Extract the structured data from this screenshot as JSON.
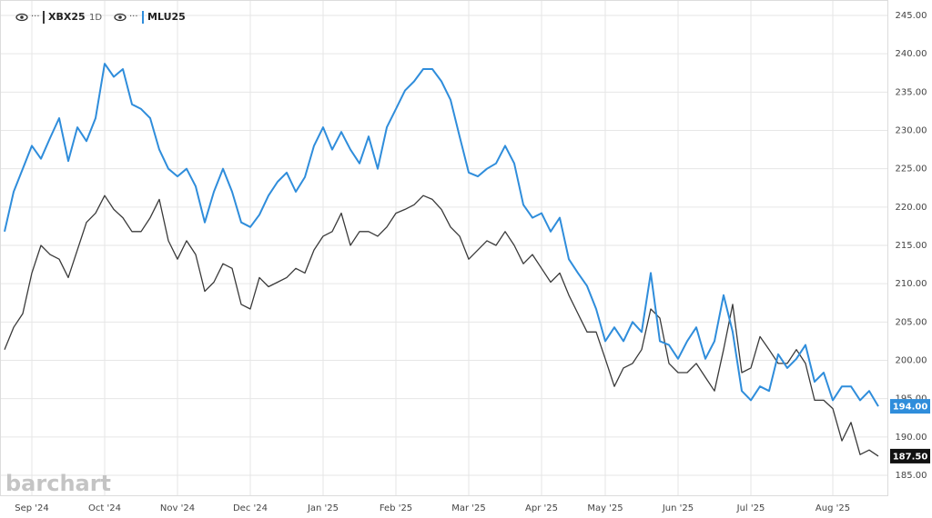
{
  "chart_data": {
    "type": "line",
    "watermark": "barchart",
    "interval": "1D",
    "categories": [
      null,
      null,
      null,
      "Sep '24",
      null,
      null,
      null,
      null,
      null,
      null,
      null,
      "Oct '24",
      null,
      null,
      null,
      null,
      null,
      null,
      null,
      "Nov '24",
      null,
      null,
      null,
      null,
      null,
      null,
      null,
      "Dec '24",
      null,
      null,
      null,
      null,
      null,
      null,
      null,
      "Jan '25",
      null,
      null,
      null,
      null,
      null,
      null,
      null,
      "Feb '25",
      null,
      null,
      null,
      null,
      null,
      null,
      null,
      "Mar '25",
      null,
      null,
      null,
      null,
      null,
      null,
      null,
      "Apr '25",
      null,
      null,
      null,
      null,
      null,
      null,
      "May '25",
      null,
      null,
      null,
      null,
      null,
      null,
      null,
      "Jun '25",
      null,
      null,
      null,
      null,
      null,
      null,
      null,
      "Jul '25",
      null,
      null,
      null,
      null,
      null,
      null,
      null,
      null,
      "Aug '25",
      null,
      null,
      null,
      null,
      null
    ],
    "series": [
      {
        "name": "XBX25",
        "color": "#3a3a3a",
        "last_value_label": "187.50",
        "values": [
          201.4,
          204.3,
          206.1,
          211.4,
          215,
          213.8,
          213.2,
          210.8,
          214.4,
          218,
          219.2,
          221.5,
          219.7,
          218.6,
          216.8,
          216.8,
          218.6,
          221,
          215.6,
          213.2,
          215.6,
          213.8,
          209,
          210.2,
          212.6,
          212,
          207.3,
          206.7,
          210.8,
          209.6,
          210.2,
          210.8,
          212,
          211.4,
          214.4,
          216.2,
          216.8,
          219.2,
          215,
          216.8,
          216.8,
          216.2,
          217.4,
          219.2,
          219.7,
          220.3,
          221.5,
          221,
          219.7,
          217.4,
          216.2,
          213.2,
          214.4,
          215.6,
          215,
          216.8,
          215,
          212.6,
          213.8,
          212,
          210.2,
          211.4,
          208.5,
          206.1,
          203.7,
          203.7,
          200.2,
          196.6,
          199,
          199.6,
          201.4,
          206.7,
          205.5,
          199.6,
          198.4,
          198.4,
          199.6,
          197.8,
          196,
          201.4,
          207.3,
          198.4,
          199,
          203.1,
          201.4,
          199.6,
          199.6,
          201.4,
          199.6,
          194.8,
          194.8,
          193.7,
          189.5,
          191.9,
          187.7,
          188.3,
          187.5
        ]
      },
      {
        "name": "MLU25",
        "color": "#2f8ddb",
        "last_value_label": "194.00",
        "values": [
          216.8,
          222,
          225,
          228,
          226.3,
          229,
          231.6,
          226,
          230.4,
          228.6,
          231.6,
          238.7,
          237,
          238,
          233.4,
          232.8,
          231.6,
          227.5,
          225,
          224,
          225,
          222.7,
          218,
          222,
          225,
          222,
          218,
          217.4,
          219,
          221.5,
          223.3,
          224.5,
          222,
          223.9,
          228,
          230.4,
          227.5,
          229.8,
          227.5,
          225.7,
          229.2,
          225,
          230.4,
          232.8,
          235.2,
          236.4,
          238,
          238,
          236.4,
          234,
          229.2,
          224.5,
          224,
          225,
          225.7,
          228,
          225.7,
          220.3,
          218.6,
          219.2,
          216.8,
          218.6,
          213.2,
          211.4,
          209.7,
          206.7,
          202.5,
          204.3,
          202.5,
          205,
          203.7,
          211.4,
          202.5,
          202,
          200.2,
          202.5,
          204.3,
          200.2,
          202.5,
          208.5,
          203.7,
          196,
          194.8,
          196.6,
          196,
          200.8,
          199,
          200.2,
          202,
          197.2,
          198.4,
          194.8,
          196.6,
          196.6,
          194.8,
          196,
          194
        ]
      }
    ],
    "ylim": [
      185,
      245
    ],
    "yticks": [
      {
        "value": 185,
        "label": "185.00"
      },
      {
        "value": 190,
        "label": "190.00"
      },
      {
        "value": 195,
        "label": "195.00"
      },
      {
        "value": 200,
        "label": "200.00"
      },
      {
        "value": 205,
        "label": "205.00"
      },
      {
        "value": 210,
        "label": "210.00"
      },
      {
        "value": 215,
        "label": "215.00"
      },
      {
        "value": 220,
        "label": "220.00"
      },
      {
        "value": 225,
        "label": "225.00"
      },
      {
        "value": 230,
        "label": "230.00"
      },
      {
        "value": 235,
        "label": "235.00"
      },
      {
        "value": 240,
        "label": "240.00"
      },
      {
        "value": 245,
        "label": "245.00"
      }
    ],
    "grid": true
  }
}
